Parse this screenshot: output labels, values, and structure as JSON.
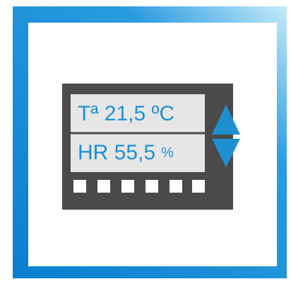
{
  "display": {
    "lines": [
      {
        "text": "Tª 21,5 ºC"
      },
      {
        "text": "HR 55,5",
        "unit": "%"
      }
    ]
  }
}
